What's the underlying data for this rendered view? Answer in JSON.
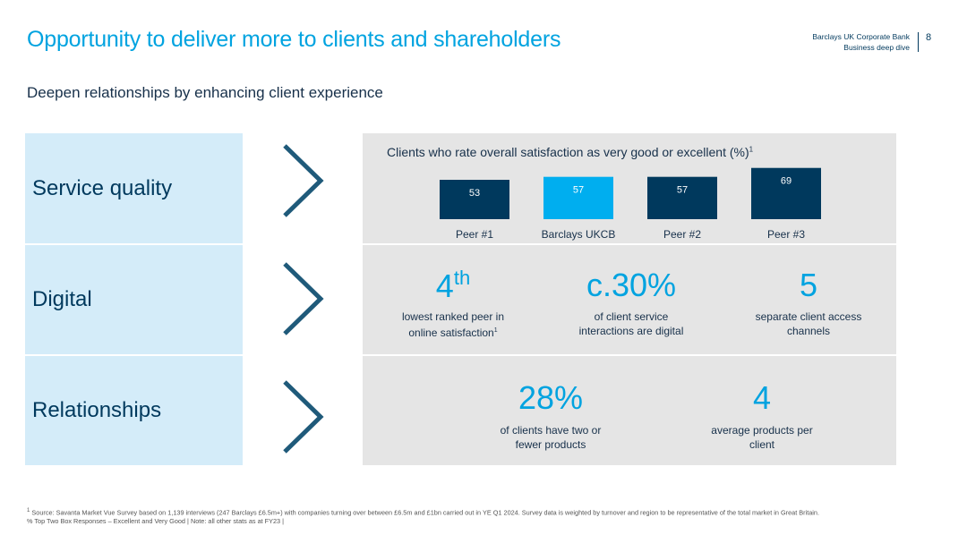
{
  "header": {
    "title": "Opportunity to deliver more to clients and shareholders",
    "subtitle": "Deepen relationships by enhancing client experience",
    "brand_line1": "Barclays UK Corporate Bank",
    "brand_line2": "Business deep dive",
    "page_number": "8"
  },
  "rows": [
    {
      "label": "Service quality"
    },
    {
      "label": "Digital"
    },
    {
      "label": "Relationships"
    }
  ],
  "colors": {
    "dark_bar": "#00395d",
    "highlight_bar": "#00aeef",
    "accent": "#00a3e0",
    "panel": "#e5e5e5",
    "label_bg": "#d4ecf9"
  },
  "service_quality": {
    "chart_title": "Clients who rate overall satisfaction as very good or excellent (%)",
    "chart_title_sup": "1"
  },
  "chart_data": {
    "type": "bar",
    "title": "Clients who rate overall satisfaction as very good or excellent (%)",
    "categories": [
      "Peer #1",
      "Barclays UKCB",
      "Peer #2",
      "Peer #3"
    ],
    "values": [
      53,
      57,
      57,
      69
    ],
    "highlight": "Barclays UKCB",
    "data_labels": true,
    "grid": false,
    "legend": "none"
  },
  "digital": {
    "stat1_value": "4",
    "stat1_sup": "th",
    "stat1_desc_line1": "lowest ranked peer in",
    "stat1_desc_line2": "online satisfaction",
    "stat1_desc_sup": "1",
    "stat2_value": "c.30%",
    "stat2_desc_line1": "of client service",
    "stat2_desc_line2": "interactions are digital",
    "stat3_value": "5",
    "stat3_desc_line1": "separate client access",
    "stat3_desc_line2": "channels"
  },
  "relationships": {
    "stat1_value": "28%",
    "stat1_desc_line1": "of clients have two or",
    "stat1_desc_line2": "fewer products",
    "stat2_value": "4",
    "stat2_desc_line1": "average products per",
    "stat2_desc_line2": "client"
  },
  "footnote": {
    "sup": "1",
    "line1": "Source: Savanta Market Vue Survey based on 1,139 interviews (247 Barclays £6.5m+) with companies turning over between £6.5m and £1bn carried out in YE Q1 2024. Survey data is weighted by turnover and region to be representative of the total market in Great Britain.",
    "line2": "% Top Two Box Responses – Excellent and Very Good | Note: all other stats as at FY23 |"
  }
}
